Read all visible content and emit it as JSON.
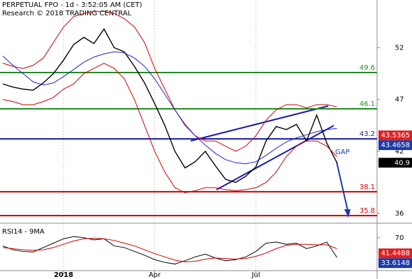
{
  "chart_data": [
    {
      "type": "line",
      "title": "PERPETUAL FPO - 1d - 3:52:05 AM (CET)",
      "subtitle": "Research © 2018 TRADING CENTRAL",
      "annotation": "GAP",
      "categories": [
        null,
        null,
        null,
        null,
        null,
        null,
        "2018",
        null,
        null,
        null,
        null,
        null,
        null,
        null,
        null,
        "Apr",
        null,
        null,
        null,
        null,
        null,
        null,
        null,
        null,
        null,
        "Jul",
        null,
        null,
        null,
        null,
        null,
        null,
        null,
        null
      ],
      "series": [
        {
          "color": "#000000",
          "values": [
            48.5,
            48.2,
            48.0,
            47.9,
            48.6,
            49.5,
            50.8,
            52.3,
            53.0,
            52.4,
            53.8,
            52.0,
            51.6,
            50.2,
            48.6,
            46.6,
            44.5,
            42.0,
            40.4,
            41.0,
            42.0,
            40.6,
            39.3,
            39.0,
            39.6,
            40.5,
            43.0,
            44.4,
            44.1,
            44.6,
            43.0,
            45.5,
            42.8,
            40.9
          ]
        },
        {
          "color": "#cc0000",
          "values": [
            50.5,
            50.2,
            50.0,
            50.3,
            51.0,
            52.5,
            54.0,
            55.0,
            55.3,
            55.5,
            55.5,
            55.3,
            54.8,
            54.0,
            52.5,
            50.0,
            48.0,
            46.0,
            44.5,
            43.5,
            43.0,
            43.0,
            42.5,
            42.0,
            42.5,
            43.5,
            45.0,
            46.0,
            46.5,
            46.5,
            46.2,
            46.5,
            46.5,
            46.3
          ]
        },
        {
          "color": "#cc0000",
          "values": [
            47.0,
            46.8,
            46.5,
            46.5,
            46.8,
            47.2,
            48.0,
            48.5,
            49.5,
            50.0,
            50.5,
            50.0,
            49.0,
            47.0,
            44.5,
            42.0,
            40.0,
            38.5,
            38.0,
            38.2,
            38.5,
            38.5,
            38.3,
            38.2,
            38.3,
            38.5,
            39.0,
            40.0,
            41.5,
            42.5,
            43.0,
            43.0,
            42.5,
            41.5
          ]
        },
        {
          "color": "#2222cc",
          "values": [
            51.2,
            50.3,
            49.5,
            48.7,
            48.4,
            48.6,
            49.2,
            49.9,
            50.6,
            51.1,
            51.4,
            51.6,
            51.5,
            51.0,
            50.2,
            49.0,
            47.5,
            46.0,
            44.6,
            43.5,
            42.6,
            41.8,
            41.2,
            40.9,
            40.8,
            41.0,
            41.6,
            42.3,
            42.9,
            43.3,
            43.6,
            43.9,
            44.1,
            44.2
          ]
        }
      ],
      "levels": [
        {
          "value": 49.6,
          "color": "#228b22"
        },
        {
          "value": 46.1,
          "color": "#228b22"
        },
        {
          "value": 43.2,
          "color": "#1a1aa8"
        },
        {
          "value": 38.1,
          "color": "#cc0000"
        },
        {
          "value": 35.8,
          "color": "#cc0000"
        }
      ],
      "badges": [
        {
          "value": 43.5365,
          "color": "#e02020"
        },
        {
          "value": 43.4658,
          "color": "#1a3aa8"
        },
        {
          "value": 40.9,
          "color": "#000000"
        }
      ],
      "ylim": [
        35.2,
        56.6
      ],
      "yticks": [
        36,
        42,
        47,
        52
      ]
    },
    {
      "type": "line",
      "title": "RSI14 - 9MA",
      "series": [
        {
          "color": "#000000",
          "values": [
            55,
            48,
            45,
            44,
            52,
            60,
            68,
            72,
            70,
            66,
            68,
            55,
            52,
            45,
            38,
            30,
            25,
            22,
            28,
            35,
            40,
            33,
            28,
            30,
            35,
            45,
            60,
            62,
            58,
            60,
            50,
            55,
            62,
            34
          ]
        },
        {
          "color": "#cc0000",
          "values": [
            52,
            50,
            48,
            47,
            48,
            52,
            58,
            64,
            68,
            69,
            68,
            65,
            60,
            55,
            48,
            41,
            35,
            29,
            26,
            27,
            31,
            33,
            32,
            31,
            32,
            36,
            42,
            50,
            56,
            58,
            58,
            57,
            57,
            50
          ]
        }
      ],
      "badges": [
        {
          "value": 41.4488,
          "color": "#e02020"
        },
        {
          "value": 33.6148,
          "color": "#1a3aa8"
        }
      ],
      "ylim": [
        10,
        90
      ],
      "yticks": [
        70
      ]
    }
  ]
}
